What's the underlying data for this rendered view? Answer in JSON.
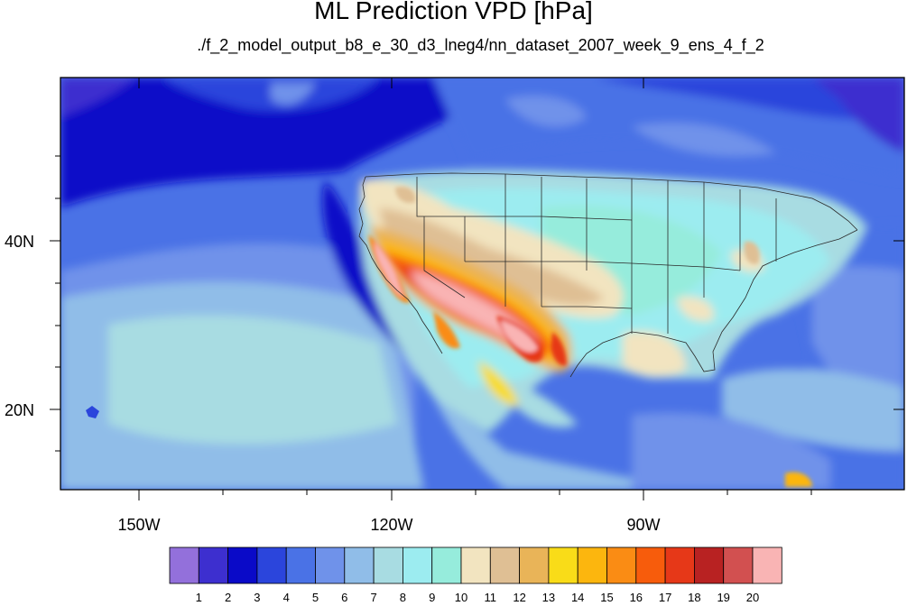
{
  "title": "ML Prediction VPD [hPa]",
  "subtitle": "./f_2_model_output_b8_e_30_d3_lneg4/nn_dataset_2007_week_9_ens_4_f_2",
  "axes": {
    "lon_ticks": [
      "150W",
      "120W",
      "90W"
    ],
    "lat_ticks": [
      "40N",
      "20N"
    ]
  },
  "colorbar": {
    "labels": [
      "1",
      "2",
      "3",
      "4",
      "5",
      "6",
      "7",
      "8",
      "9",
      "10",
      "11",
      "12",
      "13",
      "14",
      "15",
      "16",
      "17",
      "18",
      "19",
      "20"
    ],
    "colors": [
      "#9370db",
      "#3d2fcf",
      "#0a0ac8",
      "#2b45dc",
      "#4a72e6",
      "#6f92ea",
      "#90bde8",
      "#a8dce2",
      "#9cecf0",
      "#96ecdc",
      "#f2e4c0",
      "#dfbf94",
      "#e9b458",
      "#f9dc18",
      "#fcb60e",
      "#fa8c14",
      "#f75c0c",
      "#e63818",
      "#b82222",
      "#d25050",
      "#f9b4b4"
    ]
  }
}
